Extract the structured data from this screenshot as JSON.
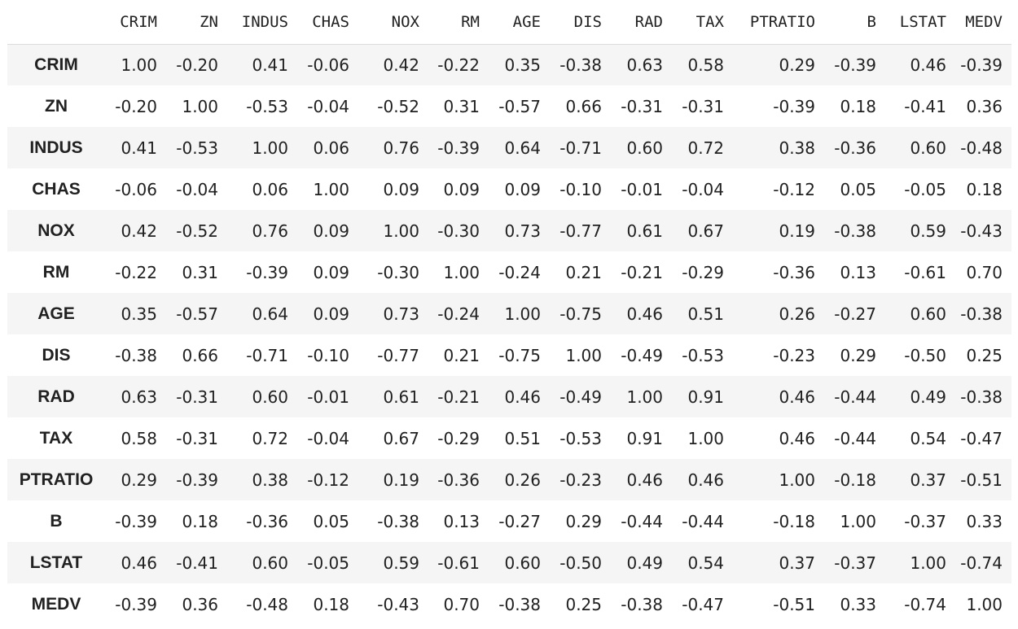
{
  "table": {
    "columns": [
      "CRIM",
      "ZN",
      "INDUS",
      "CHAS",
      "NOX",
      "RM",
      "AGE",
      "DIS",
      "RAD",
      "TAX",
      "PTRATIO",
      "B",
      "LSTAT",
      "MEDV"
    ],
    "rows": [
      {
        "label": "CRIM",
        "cells": [
          "1.00",
          "-0.20",
          "0.41",
          "-0.06",
          "0.42",
          "-0.22",
          "0.35",
          "-0.38",
          "0.63",
          "0.58",
          "0.29",
          "-0.39",
          "0.46",
          "-0.39"
        ]
      },
      {
        "label": "ZN",
        "cells": [
          "-0.20",
          "1.00",
          "-0.53",
          "-0.04",
          "-0.52",
          "0.31",
          "-0.57",
          "0.66",
          "-0.31",
          "-0.31",
          "-0.39",
          "0.18",
          "-0.41",
          "0.36"
        ]
      },
      {
        "label": "INDUS",
        "cells": [
          "0.41",
          "-0.53",
          "1.00",
          "0.06",
          "0.76",
          "-0.39",
          "0.64",
          "-0.71",
          "0.60",
          "0.72",
          "0.38",
          "-0.36",
          "0.60",
          "-0.48"
        ]
      },
      {
        "label": "CHAS",
        "cells": [
          "-0.06",
          "-0.04",
          "0.06",
          "1.00",
          "0.09",
          "0.09",
          "0.09",
          "-0.10",
          "-0.01",
          "-0.04",
          "-0.12",
          "0.05",
          "-0.05",
          "0.18"
        ]
      },
      {
        "label": "NOX",
        "cells": [
          "0.42",
          "-0.52",
          "0.76",
          "0.09",
          "1.00",
          "-0.30",
          "0.73",
          "-0.77",
          "0.61",
          "0.67",
          "0.19",
          "-0.38",
          "0.59",
          "-0.43"
        ]
      },
      {
        "label": "RM",
        "cells": [
          "-0.22",
          "0.31",
          "-0.39",
          "0.09",
          "-0.30",
          "1.00",
          "-0.24",
          "0.21",
          "-0.21",
          "-0.29",
          "-0.36",
          "0.13",
          "-0.61",
          "0.70"
        ]
      },
      {
        "label": "AGE",
        "cells": [
          "0.35",
          "-0.57",
          "0.64",
          "0.09",
          "0.73",
          "-0.24",
          "1.00",
          "-0.75",
          "0.46",
          "0.51",
          "0.26",
          "-0.27",
          "0.60",
          "-0.38"
        ]
      },
      {
        "label": "DIS",
        "cells": [
          "-0.38",
          "0.66",
          "-0.71",
          "-0.10",
          "-0.77",
          "0.21",
          "-0.75",
          "1.00",
          "-0.49",
          "-0.53",
          "-0.23",
          "0.29",
          "-0.50",
          "0.25"
        ]
      },
      {
        "label": "RAD",
        "cells": [
          "0.63",
          "-0.31",
          "0.60",
          "-0.01",
          "0.61",
          "-0.21",
          "0.46",
          "-0.49",
          "1.00",
          "0.91",
          "0.46",
          "-0.44",
          "0.49",
          "-0.38"
        ]
      },
      {
        "label": "TAX",
        "cells": [
          "0.58",
          "-0.31",
          "0.72",
          "-0.04",
          "0.67",
          "-0.29",
          "0.51",
          "-0.53",
          "0.91",
          "1.00",
          "0.46",
          "-0.44",
          "0.54",
          "-0.47"
        ]
      },
      {
        "label": "PTRATIO",
        "cells": [
          "0.29",
          "-0.39",
          "0.38",
          "-0.12",
          "0.19",
          "-0.36",
          "0.26",
          "-0.23",
          "0.46",
          "0.46",
          "1.00",
          "-0.18",
          "0.37",
          "-0.51"
        ]
      },
      {
        "label": "B",
        "cells": [
          "-0.39",
          "0.18",
          "-0.36",
          "0.05",
          "-0.38",
          "0.13",
          "-0.27",
          "0.29",
          "-0.44",
          "-0.44",
          "-0.18",
          "1.00",
          "-0.37",
          "0.33"
        ]
      },
      {
        "label": "LSTAT",
        "cells": [
          "0.46",
          "-0.41",
          "0.60",
          "-0.05",
          "0.59",
          "-0.61",
          "0.60",
          "-0.50",
          "0.49",
          "0.54",
          "0.37",
          "-0.37",
          "1.00",
          "-0.74"
        ]
      },
      {
        "label": "MEDV",
        "cells": [
          "-0.39",
          "0.36",
          "-0.48",
          "0.18",
          "-0.43",
          "0.70",
          "-0.38",
          "0.25",
          "-0.38",
          "-0.47",
          "-0.51",
          "0.33",
          "-0.74",
          "1.00"
        ]
      }
    ]
  },
  "colors": {
    "striped_row": "#f5f5f5",
    "plain_row": "#ffffff",
    "header_border": "#dcdcdc",
    "text": "#212121"
  }
}
